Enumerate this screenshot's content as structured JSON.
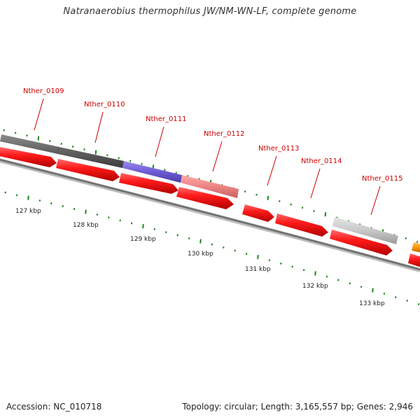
{
  "title": "Natranaerobius thermophilus JW/NM-WN-LF, complete genome",
  "accession": "Accession: NC_010718",
  "topology": "Topology: circular; Length: 3,165,557 bp; Genes: 2,946",
  "colors": {
    "gene_label": "#cc0000",
    "cds": "#ff1111",
    "tick": "#1a8a1a",
    "backbone": "#777777",
    "kbp_label": "#222222"
  },
  "gene_labels": [
    {
      "id": "g109",
      "text": "Nther_0109"
    },
    {
      "id": "g110",
      "text": "Nther_0110"
    },
    {
      "id": "g111",
      "text": "Nther_0111"
    },
    {
      "id": "g112",
      "text": "Nther_0112"
    },
    {
      "id": "g113",
      "text": "Nther_0113"
    },
    {
      "id": "g114",
      "text": "Nther_0114"
    },
    {
      "id": "g115",
      "text": "Nther_0115"
    }
  ],
  "kbp_labels": [
    "127 kbp",
    "128 kbp",
    "129 kbp",
    "130 kbp",
    "131 kbp",
    "132 kbp",
    "133 kbp"
  ]
}
